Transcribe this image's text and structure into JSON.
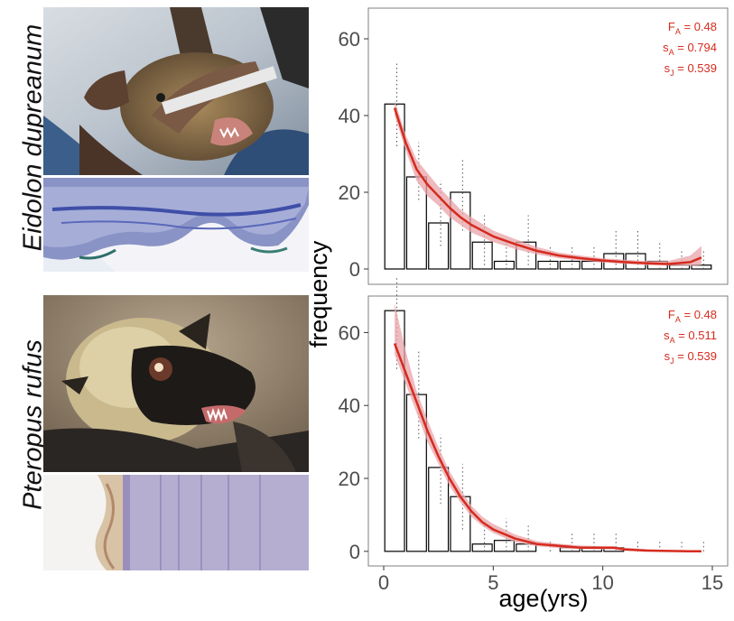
{
  "species": [
    "Eidolon dupreanum",
    "Pteropus rufus"
  ],
  "colors": {
    "fit_line": "#d52b1e",
    "ci_band": "#e8a3a8",
    "bar_stroke": "#000000",
    "error_bar": "#555555",
    "panel_border": "#7f7f7f",
    "tooltip_text": "#d52b1e"
  },
  "chart_data": [
    {
      "type": "bar",
      "panel": "top",
      "species": "Eidolon dupreanum",
      "xlabel": "age(yrs)",
      "ylabel": "frequency",
      "xlim": [
        -0.7,
        15.7
      ],
      "ylim": [
        -4,
        68
      ],
      "x_ticks": [
        0,
        5,
        10,
        15
      ],
      "y_ticks": [
        0,
        20,
        40,
        60
      ],
      "grid": false,
      "bars": {
        "x": [
          0.5,
          1.5,
          2.5,
          3.5,
          4.5,
          5.5,
          6.5,
          7.5,
          8.5,
          9.5,
          10.5,
          11.5,
          12.5,
          13.5,
          14.5
        ],
        "values": [
          43,
          24,
          12,
          20,
          7,
          2,
          7,
          2,
          2,
          2,
          4,
          4,
          2,
          1,
          1
        ]
      },
      "error_bars": {
        "x": [
          0.6,
          1.6,
          2.6,
          3.6,
          4.6,
          5.6,
          6.6,
          7.6,
          8.6,
          9.6,
          10.6,
          11.6,
          12.6,
          13.6,
          14.6
        ],
        "low": [
          32,
          18,
          6,
          10,
          1,
          0,
          1,
          0,
          0,
          0,
          0,
          0,
          0,
          0,
          0
        ],
        "high": [
          54,
          33,
          23,
          29,
          14,
          7,
          14,
          6,
          6,
          6,
          10,
          10,
          7,
          5,
          5
        ]
      },
      "fit": {
        "x": [
          0.5,
          1,
          1.5,
          2,
          2.5,
          3,
          3.5,
          4,
          5,
          6,
          7,
          8,
          9,
          10,
          11,
          12,
          13,
          14,
          14.5
        ],
        "y": [
          42,
          33,
          26,
          22,
          19,
          16,
          13.5,
          11.5,
          8.5,
          6.5,
          4.7,
          3.5,
          2.8,
          2.2,
          1.8,
          1.5,
          1.3,
          1.8,
          3
        ],
        "low": [
          40,
          31,
          23,
          19,
          16.5,
          13.5,
          11.5,
          9.5,
          7,
          5.2,
          3.8,
          2.8,
          2.2,
          1.7,
          1.3,
          1,
          0.9,
          0.8,
          1
        ],
        "high": [
          44,
          35,
          28.5,
          25,
          21.5,
          18.5,
          15.5,
          13.5,
          10,
          7.8,
          5.7,
          4.3,
          3.5,
          2.8,
          2.4,
          2.1,
          2.1,
          3.5,
          6
        ]
      },
      "annotations": [
        {
          "symbol": "F",
          "sub": "A",
          "value": "= 0.48"
        },
        {
          "symbol": "s",
          "sub": "A",
          "value": "= 0.794"
        },
        {
          "symbol": "s",
          "sub": "J",
          "value": "= 0.539"
        }
      ]
    },
    {
      "type": "bar",
      "panel": "bottom",
      "species": "Pteropus rufus",
      "xlabel": "age(yrs)",
      "ylabel": "frequency",
      "xlim": [
        -0.7,
        15.7
      ],
      "ylim": [
        -4,
        70
      ],
      "x_ticks": [
        0,
        5,
        10,
        15
      ],
      "y_ticks": [
        0,
        20,
        40,
        60
      ],
      "grid": false,
      "bars": {
        "x": [
          0.5,
          1.5,
          2.5,
          3.5,
          4.5,
          5.5,
          6.5,
          7.5,
          8.5,
          9.5,
          10.5,
          11.5,
          12.5,
          13.5,
          14.5
        ],
        "values": [
          66,
          43,
          23,
          15,
          2,
          3,
          2,
          0,
          1,
          1,
          1,
          0,
          0,
          0,
          0
        ]
      },
      "error_bars": {
        "x": [
          0.6,
          1.6,
          2.6,
          3.6,
          4.6,
          5.6,
          6.6,
          7.6,
          8.6,
          9.6,
          10.6,
          11.6,
          12.6,
          13.6,
          14.6
        ],
        "low": [
          50,
          31,
          13,
          6,
          0,
          0,
          0,
          0,
          0,
          0,
          0,
          0,
          0,
          0,
          0
        ],
        "high": [
          75,
          55,
          32,
          24,
          8,
          9,
          7,
          3,
          5,
          5,
          5,
          3,
          3,
          3,
          3
        ]
      },
      "fit": {
        "x": [
          0.5,
          1,
          1.5,
          2,
          2.5,
          3,
          3.5,
          4,
          4.5,
          5,
          6,
          7,
          8,
          9,
          10,
          10.5,
          11,
          12,
          13,
          14,
          14.5
        ],
        "y": [
          57,
          49,
          41,
          33,
          26,
          20,
          15,
          11,
          8,
          6,
          3.5,
          2,
          1.5,
          1,
          1,
          1,
          0.5,
          0.2,
          0.1,
          0,
          0
        ],
        "low": [
          54,
          46,
          38,
          30,
          24,
          18,
          13.5,
          9.5,
          7,
          5,
          2.5,
          1.4,
          0.9,
          0.6,
          0.5,
          0.5,
          0.2,
          0,
          0,
          0,
          0
        ],
        "high": [
          68,
          55,
          44,
          36,
          28.5,
          22,
          17,
          12.5,
          9.5,
          7.5,
          4.6,
          2.8,
          2.1,
          1.6,
          1.4,
          1.4,
          1,
          0.6,
          0.3,
          0.1,
          0.1
        ]
      },
      "annotations": [
        {
          "symbol": "F",
          "sub": "A",
          "value": "= 0.48"
        },
        {
          "symbol": "s",
          "sub": "A",
          "value": "= 0.511"
        },
        {
          "symbol": "s",
          "sub": "J",
          "value": "= 0.539"
        }
      ]
    }
  ]
}
